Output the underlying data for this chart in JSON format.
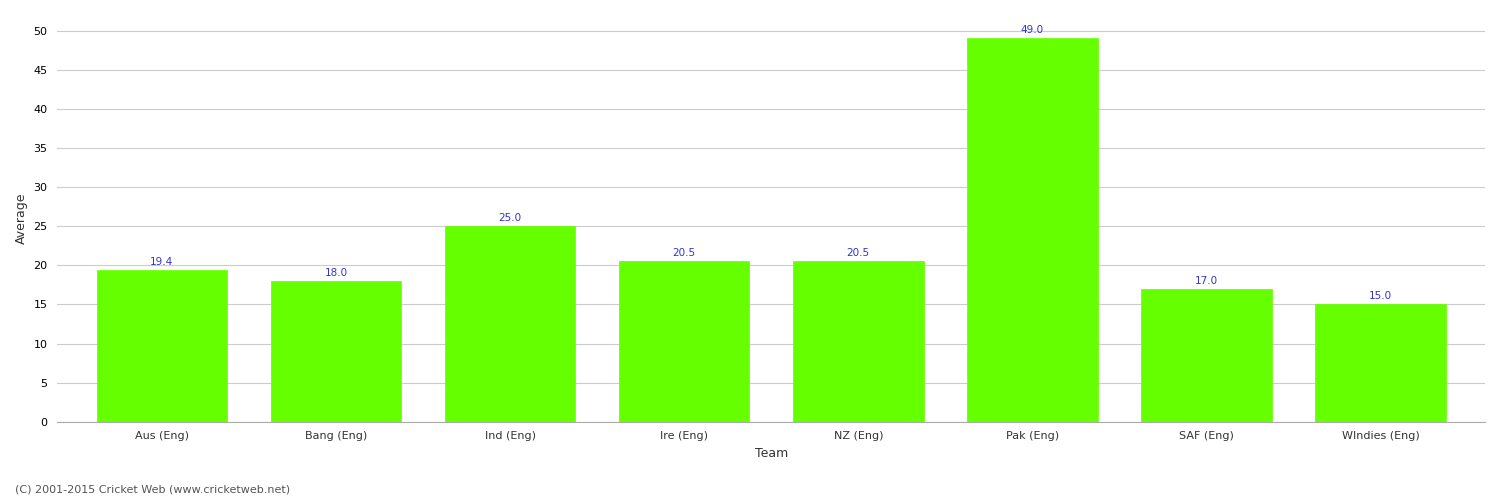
{
  "categories": [
    "Aus (Eng)",
    "Bang (Eng)",
    "Ind (Eng)",
    "Ire (Eng)",
    "NZ (Eng)",
    "Pak (Eng)",
    "SAF (Eng)",
    "WIndies (Eng)"
  ],
  "values": [
    19.4,
    18.0,
    25.0,
    20.5,
    20.5,
    49.0,
    17.0,
    15.0
  ],
  "bar_color": "#66ff00",
  "bar_edge_color": "#66ff00",
  "value_label_color": "#3333cc",
  "value_label_fontsize": 7.5,
  "xlabel": "Team",
  "ylabel": "Average",
  "ylim": [
    0,
    52
  ],
  "yticks": [
    0,
    5,
    10,
    15,
    20,
    25,
    30,
    35,
    40,
    45,
    50
  ],
  "grid_color": "#cccccc",
  "bg_color": "#ffffff",
  "footer_text": "(C) 2001-2015 Cricket Web (www.cricketweb.net)",
  "footer_fontsize": 8,
  "footer_color": "#555555",
  "axis_label_fontsize": 9,
  "tick_label_fontsize": 8
}
